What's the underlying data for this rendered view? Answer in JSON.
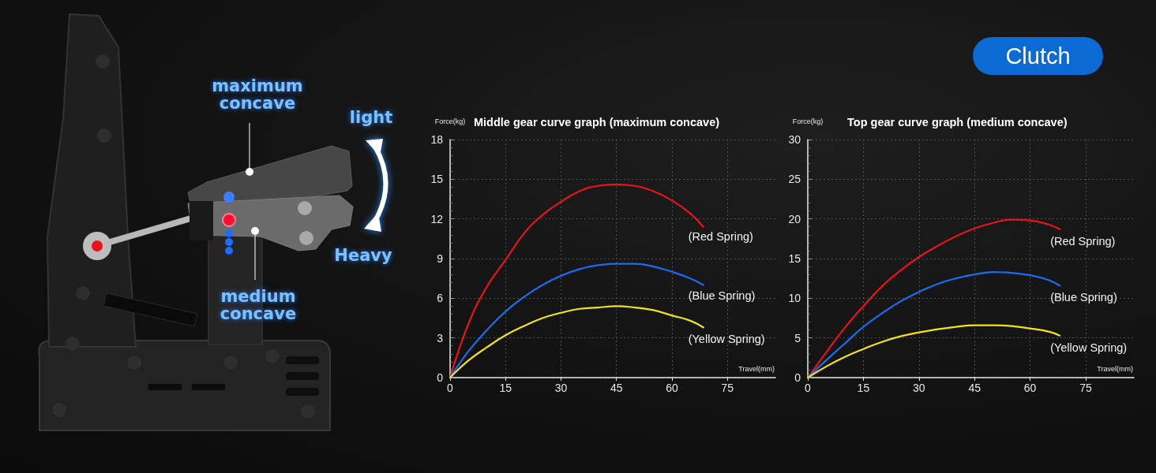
{
  "chart_data": [
    {
      "type": "other",
      "annotations": [
        "maximum concave",
        "light",
        "Heavy",
        "medium concave"
      ]
    },
    {
      "type": "line",
      "title": "Middle gear curve graph (maximum concave)",
      "xlabel": "Travel(mm)",
      "ylabel": "Force(kg)",
      "x": [
        0,
        5,
        10,
        15,
        20,
        25,
        30,
        35,
        40,
        45,
        50,
        55,
        60,
        65,
        68.5
      ],
      "series": [
        {
          "name": "(Red Spring)",
          "color": "#e8141b",
          "values": [
            0,
            4.1,
            6.9,
            8.9,
            10.9,
            12.3,
            13.3,
            14.1,
            14.5,
            14.6,
            14.5,
            14.1,
            13.4,
            12.4,
            11.4
          ]
        },
        {
          "name": "(Blue Spring)",
          "color": "#1a6cf0",
          "values": [
            0,
            2.0,
            3.6,
            5.0,
            6.1,
            7.0,
            7.7,
            8.2,
            8.5,
            8.6,
            8.6,
            8.4,
            8.0,
            7.5,
            7.0
          ]
        },
        {
          "name": "(Yellow Spring)",
          "color": "#f2e21c",
          "values": [
            0,
            1.3,
            2.3,
            3.2,
            3.9,
            4.5,
            4.9,
            5.2,
            5.3,
            5.4,
            5.3,
            5.1,
            4.7,
            4.3,
            3.8
          ]
        }
      ],
      "xlim": [
        0,
        88
      ],
      "xticks": [
        0,
        15,
        30,
        45,
        60,
        75
      ],
      "ylim": [
        0,
        18
      ],
      "yticks": [
        0,
        3,
        6,
        9,
        12,
        15,
        18
      ],
      "grid": true
    },
    {
      "type": "line",
      "title": "Top gear curve graph (medium concave)",
      "xlabel": "Travel(mm)",
      "ylabel": "Force(kg)",
      "annotations": [
        "Clutch"
      ],
      "x": [
        0,
        5,
        10,
        15,
        20,
        25,
        30,
        35,
        40,
        45,
        50,
        55,
        60,
        65,
        68
      ],
      "series": [
        {
          "name": "(Red Spring)",
          "color": "#e8141b",
          "values": [
            0,
            3.2,
            6.3,
            9.0,
            11.5,
            13.5,
            15.2,
            16.6,
            17.8,
            18.8,
            19.5,
            19.9,
            19.8,
            19.3,
            18.7
          ]
        },
        {
          "name": "(Blue Spring)",
          "color": "#1a6cf0",
          "values": [
            0,
            2.2,
            4.3,
            6.4,
            8.1,
            9.6,
            10.8,
            11.8,
            12.5,
            13.0,
            13.3,
            13.2,
            12.9,
            12.3,
            11.6
          ]
        },
        {
          "name": "(Yellow Spring)",
          "color": "#f2e21c",
          "values": [
            0,
            1.4,
            2.6,
            3.6,
            4.5,
            5.2,
            5.7,
            6.1,
            6.4,
            6.6,
            6.6,
            6.5,
            6.2,
            5.8,
            5.3
          ]
        }
      ],
      "xlim": [
        0,
        88
      ],
      "xticks": [
        0,
        15,
        30,
        45,
        60,
        75
      ],
      "ylim": [
        0,
        30
      ],
      "yticks": [
        0,
        5,
        10,
        15,
        20,
        25,
        30
      ],
      "grid": true
    }
  ]
}
